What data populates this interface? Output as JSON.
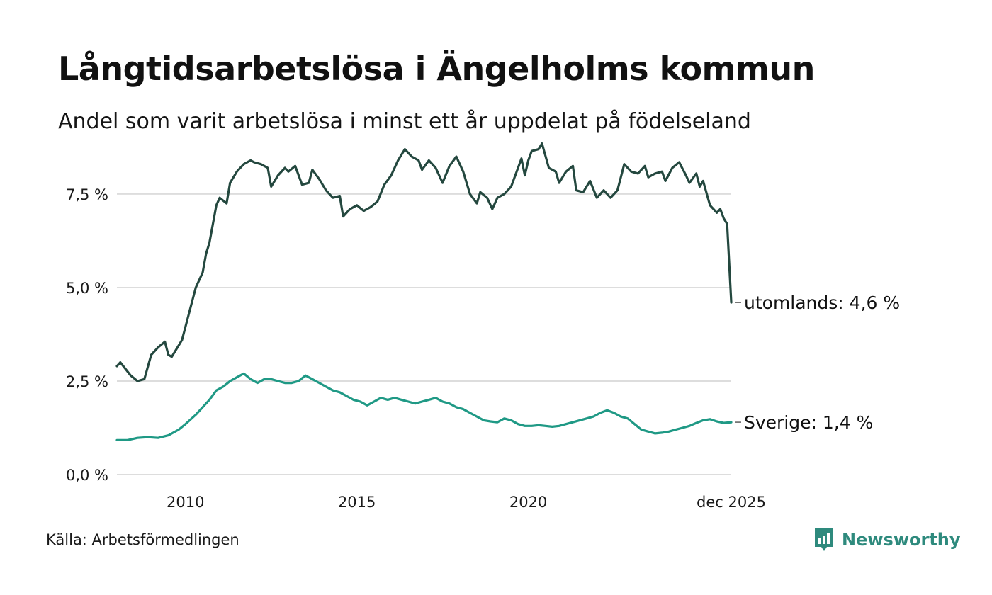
{
  "header": {
    "title": "Långtidsarbetslösa i Ängelholms kommun",
    "subtitle": "Andel som varit arbetslösa i minst ett år uppdelat på födelseland"
  },
  "footer": {
    "source": "Källa: Arbetsförmedlingen",
    "brand": "Newsworthy"
  },
  "colors": {
    "utomlands": "#24483f",
    "sverige": "#1f9985",
    "grid": "#dddddd",
    "brand": "#2e8a7d"
  },
  "chart_data": {
    "type": "line",
    "title": "Långtidsarbetslösa i Ängelholms kommun",
    "xlabel": "",
    "ylabel": "",
    "xlim": [
      2008,
      2025.92
    ],
    "ylim": [
      0,
      8.9
    ],
    "grid": true,
    "y_ticks": [
      0,
      2.5,
      5,
      7.5
    ],
    "y_tick_labels": [
      "0,0 %",
      "2,5 %",
      "5,0 %",
      "7,5 %"
    ],
    "x_ticks": [
      2010,
      2015,
      2020,
      2025.92
    ],
    "x_tick_labels": [
      "2010",
      "2015",
      "2020",
      "dec 2025"
    ],
    "series": [
      {
        "name": "utomlands",
        "end_label": "utomlands: 4,6 %",
        "points": [
          [
            2008.0,
            2.9
          ],
          [
            2008.1,
            3.0
          ],
          [
            2008.4,
            2.65
          ],
          [
            2008.6,
            2.5
          ],
          [
            2008.8,
            2.55
          ],
          [
            2009.0,
            3.2
          ],
          [
            2009.2,
            3.4
          ],
          [
            2009.4,
            3.55
          ],
          [
            2009.5,
            3.2
          ],
          [
            2009.6,
            3.15
          ],
          [
            2009.9,
            3.6
          ],
          [
            2010.1,
            4.3
          ],
          [
            2010.3,
            5.0
          ],
          [
            2010.5,
            5.4
          ],
          [
            2010.6,
            5.9
          ],
          [
            2010.7,
            6.2
          ],
          [
            2010.9,
            7.2
          ],
          [
            2011.0,
            7.4
          ],
          [
            2011.2,
            7.25
          ],
          [
            2011.3,
            7.8
          ],
          [
            2011.5,
            8.1
          ],
          [
            2011.7,
            8.3
          ],
          [
            2011.9,
            8.4
          ],
          [
            2012.0,
            8.35
          ],
          [
            2012.2,
            8.3
          ],
          [
            2012.4,
            8.2
          ],
          [
            2012.5,
            7.7
          ],
          [
            2012.7,
            8.0
          ],
          [
            2012.9,
            8.2
          ],
          [
            2013.0,
            8.1
          ],
          [
            2013.2,
            8.25
          ],
          [
            2013.4,
            7.75
          ],
          [
            2013.6,
            7.8
          ],
          [
            2013.7,
            8.15
          ],
          [
            2013.9,
            7.9
          ],
          [
            2014.1,
            7.6
          ],
          [
            2014.3,
            7.4
          ],
          [
            2014.5,
            7.45
          ],
          [
            2014.6,
            6.9
          ],
          [
            2014.8,
            7.1
          ],
          [
            2015.0,
            7.2
          ],
          [
            2015.2,
            7.05
          ],
          [
            2015.4,
            7.15
          ],
          [
            2015.6,
            7.3
          ],
          [
            2015.8,
            7.75
          ],
          [
            2016.0,
            8.0
          ],
          [
            2016.2,
            8.4
          ],
          [
            2016.4,
            8.7
          ],
          [
            2016.6,
            8.5
          ],
          [
            2016.8,
            8.4
          ],
          [
            2016.9,
            8.15
          ],
          [
            2017.1,
            8.4
          ],
          [
            2017.3,
            8.2
          ],
          [
            2017.5,
            7.8
          ],
          [
            2017.7,
            8.25
          ],
          [
            2017.9,
            8.5
          ],
          [
            2018.1,
            8.1
          ],
          [
            2018.3,
            7.5
          ],
          [
            2018.5,
            7.25
          ],
          [
            2018.6,
            7.55
          ],
          [
            2018.8,
            7.4
          ],
          [
            2018.95,
            7.1
          ],
          [
            2019.1,
            7.4
          ],
          [
            2019.3,
            7.5
          ],
          [
            2019.5,
            7.7
          ],
          [
            2019.7,
            8.2
          ],
          [
            2019.8,
            8.45
          ],
          [
            2019.9,
            8.0
          ],
          [
            2020.0,
            8.4
          ],
          [
            2020.1,
            8.65
          ],
          [
            2020.3,
            8.7
          ],
          [
            2020.4,
            8.85
          ],
          [
            2020.6,
            8.2
          ],
          [
            2020.8,
            8.1
          ],
          [
            2020.9,
            7.8
          ],
          [
            2021.1,
            8.1
          ],
          [
            2021.3,
            8.25
          ],
          [
            2021.4,
            7.6
          ],
          [
            2021.6,
            7.55
          ],
          [
            2021.8,
            7.85
          ],
          [
            2022.0,
            7.4
          ],
          [
            2022.2,
            7.6
          ],
          [
            2022.4,
            7.4
          ],
          [
            2022.6,
            7.6
          ],
          [
            2022.8,
            8.3
          ],
          [
            2023.0,
            8.1
          ],
          [
            2023.2,
            8.05
          ],
          [
            2023.4,
            8.25
          ],
          [
            2023.5,
            7.95
          ],
          [
            2023.7,
            8.05
          ],
          [
            2023.9,
            8.1
          ],
          [
            2024.0,
            7.85
          ],
          [
            2024.2,
            8.2
          ],
          [
            2024.4,
            8.35
          ],
          [
            2024.6,
            8.0
          ],
          [
            2024.7,
            7.8
          ],
          [
            2024.9,
            8.05
          ],
          [
            2025.0,
            7.7
          ],
          [
            2025.1,
            7.85
          ],
          [
            2025.3,
            7.2
          ],
          [
            2025.5,
            7.0
          ],
          [
            2025.6,
            7.1
          ],
          [
            2025.7,
            6.85
          ],
          [
            2025.8,
            6.7
          ],
          [
            2025.92,
            4.6
          ]
        ]
      },
      {
        "name": "Sverige",
        "end_label": "Sverige: 1,4 %",
        "points": [
          [
            2008.0,
            0.92
          ],
          [
            2008.3,
            0.92
          ],
          [
            2008.6,
            0.98
          ],
          [
            2008.9,
            1.0
          ],
          [
            2009.2,
            0.98
          ],
          [
            2009.5,
            1.05
          ],
          [
            2009.8,
            1.2
          ],
          [
            2010.0,
            1.35
          ],
          [
            2010.3,
            1.6
          ],
          [
            2010.5,
            1.8
          ],
          [
            2010.7,
            2.0
          ],
          [
            2010.9,
            2.25
          ],
          [
            2011.1,
            2.35
          ],
          [
            2011.3,
            2.5
          ],
          [
            2011.5,
            2.6
          ],
          [
            2011.7,
            2.7
          ],
          [
            2011.9,
            2.55
          ],
          [
            2012.1,
            2.45
          ],
          [
            2012.3,
            2.55
          ],
          [
            2012.5,
            2.55
          ],
          [
            2012.7,
            2.5
          ],
          [
            2012.9,
            2.45
          ],
          [
            2013.1,
            2.45
          ],
          [
            2013.3,
            2.5
          ],
          [
            2013.5,
            2.65
          ],
          [
            2013.7,
            2.55
          ],
          [
            2013.9,
            2.45
          ],
          [
            2014.1,
            2.35
          ],
          [
            2014.3,
            2.25
          ],
          [
            2014.5,
            2.2
          ],
          [
            2014.7,
            2.1
          ],
          [
            2014.9,
            2.0
          ],
          [
            2015.1,
            1.95
          ],
          [
            2015.3,
            1.85
          ],
          [
            2015.5,
            1.95
          ],
          [
            2015.7,
            2.05
          ],
          [
            2015.9,
            2.0
          ],
          [
            2016.1,
            2.05
          ],
          [
            2016.3,
            2.0
          ],
          [
            2016.5,
            1.95
          ],
          [
            2016.7,
            1.9
          ],
          [
            2016.9,
            1.95
          ],
          [
            2017.1,
            2.0
          ],
          [
            2017.3,
            2.05
          ],
          [
            2017.5,
            1.95
          ],
          [
            2017.7,
            1.9
          ],
          [
            2017.9,
            1.8
          ],
          [
            2018.1,
            1.75
          ],
          [
            2018.3,
            1.65
          ],
          [
            2018.5,
            1.55
          ],
          [
            2018.7,
            1.45
          ],
          [
            2018.9,
            1.42
          ],
          [
            2019.1,
            1.4
          ],
          [
            2019.3,
            1.5
          ],
          [
            2019.5,
            1.45
          ],
          [
            2019.7,
            1.35
          ],
          [
            2019.9,
            1.3
          ],
          [
            2020.1,
            1.3
          ],
          [
            2020.3,
            1.32
          ],
          [
            2020.5,
            1.3
          ],
          [
            2020.7,
            1.28
          ],
          [
            2020.9,
            1.3
          ],
          [
            2021.1,
            1.35
          ],
          [
            2021.3,
            1.4
          ],
          [
            2021.5,
            1.45
          ],
          [
            2021.7,
            1.5
          ],
          [
            2021.9,
            1.55
          ],
          [
            2022.1,
            1.65
          ],
          [
            2022.3,
            1.72
          ],
          [
            2022.5,
            1.65
          ],
          [
            2022.7,
            1.55
          ],
          [
            2022.9,
            1.5
          ],
          [
            2023.1,
            1.35
          ],
          [
            2023.3,
            1.2
          ],
          [
            2023.5,
            1.15
          ],
          [
            2023.7,
            1.1
          ],
          [
            2023.9,
            1.12
          ],
          [
            2024.1,
            1.15
          ],
          [
            2024.3,
            1.2
          ],
          [
            2024.5,
            1.25
          ],
          [
            2024.7,
            1.3
          ],
          [
            2024.9,
            1.38
          ],
          [
            2025.1,
            1.45
          ],
          [
            2025.3,
            1.48
          ],
          [
            2025.5,
            1.42
          ],
          [
            2025.7,
            1.38
          ],
          [
            2025.92,
            1.4
          ]
        ]
      }
    ]
  }
}
